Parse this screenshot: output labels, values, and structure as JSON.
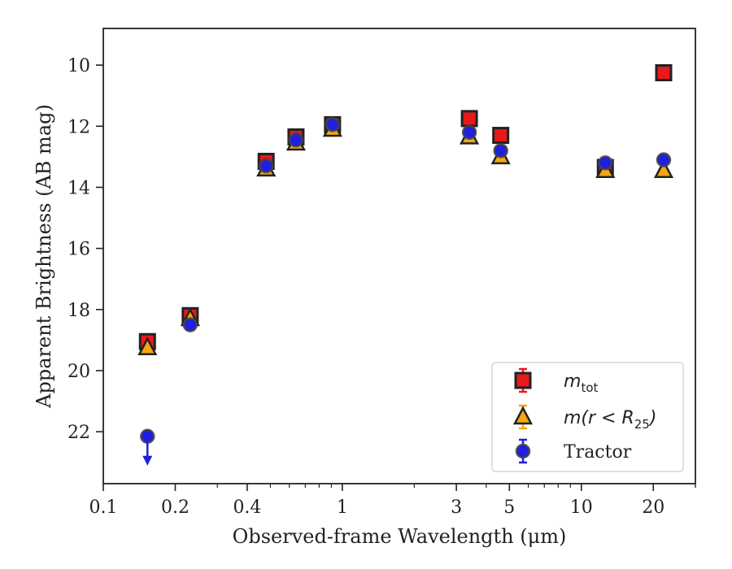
{
  "chart_data": {
    "type": "scatter",
    "xlabel": "Observed-frame Wavelength (μm)",
    "ylabel": "Apparent Brightness (AB mag)",
    "x_scale": "log",
    "xlim": [
      0.1,
      30
    ],
    "ylim": [
      23.7,
      8.8
    ],
    "y_inverted": true,
    "x_ticks": [
      {
        "value": 0.1,
        "label": "0.1"
      },
      {
        "value": 0.2,
        "label": "0.2"
      },
      {
        "value": 0.4,
        "label": "0.4"
      },
      {
        "value": 1,
        "label": "1"
      },
      {
        "value": 3,
        "label": "3"
      },
      {
        "value": 5,
        "label": "5"
      },
      {
        "value": 10,
        "label": "10"
      },
      {
        "value": 20,
        "label": "20"
      }
    ],
    "y_ticks": [
      {
        "value": 10,
        "label": "10"
      },
      {
        "value": 12,
        "label": "12"
      },
      {
        "value": 14,
        "label": "14"
      },
      {
        "value": 16,
        "label": "16"
      },
      {
        "value": 18,
        "label": "18"
      },
      {
        "value": 20,
        "label": "20"
      },
      {
        "value": 22,
        "label": "22"
      }
    ],
    "grid": false,
    "legend_position": "lower-right",
    "series": [
      {
        "key": "mtot",
        "marker": "square",
        "color": "#e8191b",
        "edge_color": "#222222",
        "x": [
          0.153,
          0.231,
          0.48,
          0.64,
          0.91,
          3.4,
          4.6,
          12.6,
          22.1
        ],
        "y": [
          19.05,
          18.2,
          13.15,
          12.35,
          11.95,
          11.75,
          12.3,
          13.35,
          10.25
        ]
      },
      {
        "key": "mr25",
        "marker": "triangle",
        "color": "#f3a712",
        "edge_color": "#222222",
        "x": [
          0.153,
          0.231,
          0.48,
          0.64,
          0.91,
          3.4,
          4.6,
          12.6,
          22.1
        ],
        "y": [
          19.25,
          18.3,
          13.4,
          12.55,
          12.1,
          12.35,
          13.0,
          13.45,
          13.45
        ]
      },
      {
        "key": "tractor",
        "marker": "circle",
        "color": "#1f1fe0",
        "edge_color": "#444444",
        "x": [
          0.153,
          0.231,
          0.48,
          0.64,
          0.91,
          3.4,
          4.6,
          12.6,
          22.1
        ],
        "y": [
          22.15,
          18.5,
          13.3,
          12.45,
          11.95,
          12.2,
          12.8,
          13.2,
          13.1
        ],
        "upper_limit_index": 0
      }
    ],
    "legend": [
      {
        "key": "mtot",
        "math": "m",
        "sub": "tot",
        "suffix": ""
      },
      {
        "key": "mr25",
        "math": "m(r < R",
        "sub": "25",
        "suffix": ")"
      },
      {
        "key": "tractor",
        "math": "",
        "sub": "",
        "suffix": "",
        "text": "Tractor"
      }
    ]
  }
}
